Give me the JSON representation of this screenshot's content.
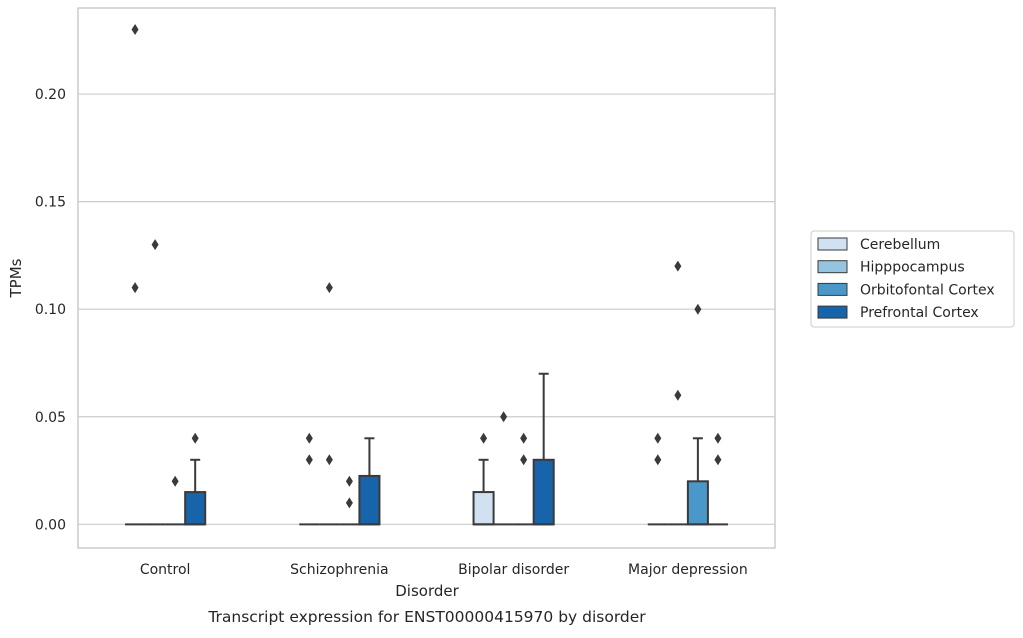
{
  "chart_data": {
    "type": "box",
    "title": "Transcript expression for ENST00000415970 by disorder",
    "xlabel": "Disorder",
    "ylabel": "TPMs",
    "ylim": [
      -0.011,
      0.24
    ],
    "yticks": [
      0.0,
      0.05,
      0.1,
      0.15,
      0.2
    ],
    "ytick_labels": [
      "0.00",
      "0.05",
      "0.10",
      "0.15",
      "0.20"
    ],
    "grid": "horizontal",
    "legend_position": "right",
    "categories": [
      "Control",
      "Schizophrenia",
      "Bipolar disorder",
      "Major depression"
    ],
    "series": [
      {
        "name": "Cerebellum",
        "color": "#d0e1f2",
        "boxes": [
          {
            "q1": 0,
            "median": 0,
            "q3": 0,
            "whisker_low": 0,
            "whisker_high": 0,
            "outliers": [
              0.11,
              0.23
            ]
          },
          {
            "q1": 0,
            "median": 0,
            "q3": 0,
            "whisker_low": 0,
            "whisker_high": 0,
            "outliers": [
              0.03,
              0.04
            ]
          },
          {
            "q1": 0,
            "median": 0,
            "q3": 0.015,
            "whisker_low": 0,
            "whisker_high": 0.03,
            "outliers": [
              0.04
            ]
          },
          {
            "q1": 0,
            "median": 0,
            "q3": 0,
            "whisker_low": 0,
            "whisker_high": 0,
            "outliers": [
              0.03,
              0.04
            ]
          }
        ]
      },
      {
        "name": "Hipppocampus",
        "color": "#94c4df",
        "boxes": [
          {
            "q1": 0,
            "median": 0,
            "q3": 0,
            "whisker_low": 0,
            "whisker_high": 0,
            "outliers": [
              0.13
            ]
          },
          {
            "q1": 0,
            "median": 0,
            "q3": 0,
            "whisker_low": 0,
            "whisker_high": 0,
            "outliers": [
              0.03,
              0.11
            ]
          },
          {
            "q1": 0,
            "median": 0,
            "q3": 0,
            "whisker_low": 0,
            "whisker_high": 0,
            "outliers": [
              0.05
            ]
          },
          {
            "q1": 0,
            "median": 0,
            "q3": 0,
            "whisker_low": 0,
            "whisker_high": 0,
            "outliers": [
              0.06,
              0.12
            ]
          }
        ]
      },
      {
        "name": "Orbitofontal Cortex",
        "color": "#4a98c9",
        "boxes": [
          {
            "q1": 0,
            "median": 0,
            "q3": 0,
            "whisker_low": 0,
            "whisker_high": 0,
            "outliers": [
              0.02
            ]
          },
          {
            "q1": 0,
            "median": 0,
            "q3": 0,
            "whisker_low": 0,
            "whisker_high": 0,
            "outliers": [
              0.01,
              0.02
            ]
          },
          {
            "q1": 0,
            "median": 0,
            "q3": 0,
            "whisker_low": 0,
            "whisker_high": 0,
            "outliers": [
              0.03,
              0.04
            ]
          },
          {
            "q1": 0,
            "median": 0,
            "q3": 0.02,
            "whisker_low": 0,
            "whisker_high": 0.04,
            "outliers": [
              0.1
            ]
          }
        ]
      },
      {
        "name": "Prefrontal Cortex",
        "color": "#1764ab",
        "boxes": [
          {
            "q1": 0,
            "median": 0,
            "q3": 0.015,
            "whisker_low": 0,
            "whisker_high": 0.03,
            "outliers": [
              0.04
            ]
          },
          {
            "q1": 0,
            "median": 0,
            "q3": 0.0225,
            "whisker_low": 0,
            "whisker_high": 0.04,
            "outliers": []
          },
          {
            "q1": 0,
            "median": 0,
            "q3": 0.03,
            "whisker_low": 0,
            "whisker_high": 0.07,
            "outliers": []
          },
          {
            "q1": 0,
            "median": 0,
            "q3": 0,
            "whisker_low": 0,
            "whisker_high": 0,
            "outliers": [
              0.03,
              0.04
            ]
          }
        ]
      }
    ]
  }
}
